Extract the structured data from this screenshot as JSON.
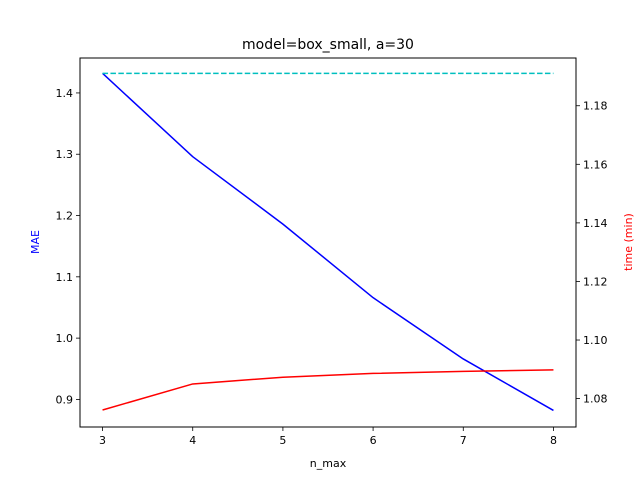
{
  "chart_data": {
    "type": "line",
    "title": "model=box_small, a=30",
    "xlabel": "n_max",
    "ylabel_left": "MAE",
    "ylabel_right": "time (min)",
    "x": [
      3,
      4,
      5,
      6,
      7,
      8
    ],
    "xlim": [
      2.75,
      8.25
    ],
    "xticks": [
      3,
      4,
      5,
      6,
      7,
      8
    ],
    "ylim_left": [
      0.855,
      1.457
    ],
    "yticks_left": [
      0.9,
      1.0,
      1.1,
      1.2,
      1.3,
      1.4
    ],
    "ylim_right": [
      1.0703,
      1.1963
    ],
    "yticks_right": [
      1.08,
      1.1,
      1.12,
      1.14,
      1.16,
      1.18
    ],
    "grid": false,
    "series": [
      {
        "axis": "left",
        "color": "#0000ff",
        "style": "solid",
        "values": [
          1.432,
          1.296,
          1.186,
          1.066,
          0.966,
          0.882
        ]
      },
      {
        "axis": "left",
        "color": "#00bfbf",
        "style": "dashed",
        "values": [
          1.432,
          1.432,
          1.432,
          1.432,
          1.432,
          1.432
        ]
      },
      {
        "axis": "right",
        "color": "#ff0000",
        "style": "solid",
        "values": [
          1.0761,
          1.085,
          1.0873,
          1.0886,
          1.0893,
          1.0898
        ]
      }
    ]
  }
}
